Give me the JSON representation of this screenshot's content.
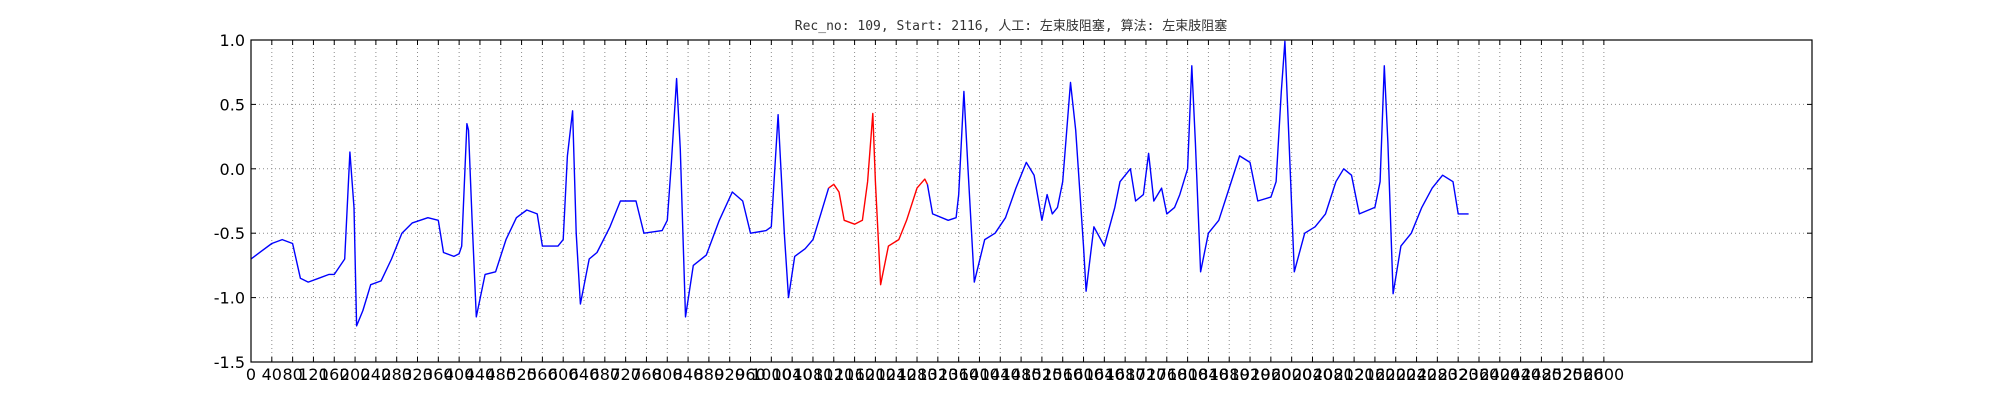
{
  "chart_data": {
    "type": "line",
    "title": "Rec_no: 109, Start: 2116, 人工: 左束肢阻塞, 算法: 左束肢阻塞",
    "xlabel": "",
    "ylabel": "",
    "xlim": [
      0,
      3000
    ],
    "ylim": [
      -1.5,
      1.0
    ],
    "grid": true,
    "yticks": [
      1.0,
      0.5,
      0.0,
      -0.5,
      -1.0,
      -1.5
    ],
    "ytick_labels": [
      "1.0",
      "0.5",
      "0.0",
      "-0.5",
      "-1.0",
      "-1.5"
    ],
    "xticks": [
      0,
      40,
      80,
      120,
      160,
      200,
      240,
      280,
      320,
      360,
      400,
      440,
      480,
      520,
      560,
      600,
      640,
      680,
      720,
      760,
      800,
      840,
      880,
      920,
      960,
      1000,
      1040,
      1080,
      1120,
      1160,
      1200,
      1240,
      1280,
      1320,
      1360,
      1400,
      1440,
      1480,
      1520,
      1560,
      1600,
      1640,
      1680,
      1720,
      1760,
      1800,
      1840,
      1880,
      1920,
      1960,
      2000,
      2040,
      2080,
      2120,
      2160,
      2200,
      2240,
      2280,
      2320,
      2360,
      2400,
      2440,
      2480,
      2520,
      2560,
      2600
    ],
    "xtick_labels": [
      "0",
      "40",
      "80",
      "120",
      "160",
      "200",
      "240",
      "280",
      "320",
      "360",
      "400",
      "440",
      "480",
      "520",
      "560",
      "600",
      "640",
      "680",
      "720",
      "760",
      "800",
      "840",
      "880",
      "920",
      "960",
      "1000",
      "1040",
      "1080",
      "1120",
      "1160",
      "1200",
      "1240",
      "1280",
      "1320",
      "1360",
      "1400",
      "1440",
      "1480",
      "1520",
      "1560",
      "1600",
      "1640",
      "1680",
      "1720",
      "1760",
      "1800",
      "1840",
      "1880",
      "1920",
      "1960",
      "2000",
      "2040",
      "2080",
      "2120",
      "2160",
      "2200",
      "2240",
      "2280",
      "2320",
      "2360",
      "2400",
      "2440",
      "2480",
      "2520",
      "2560",
      "2600"
    ],
    "series": [
      {
        "color": "#0000ff",
        "points": [
          [
            0,
            -0.7
          ],
          [
            20,
            -0.64
          ],
          [
            40,
            -0.58
          ],
          [
            60,
            -0.55
          ],
          [
            80,
            -0.58
          ],
          [
            95,
            -0.85
          ],
          [
            110,
            -0.88
          ],
          [
            130,
            -0.85
          ],
          [
            150,
            -0.82
          ],
          [
            160,
            -0.82
          ],
          [
            180,
            -0.7
          ],
          [
            190,
            0.13
          ],
          [
            198,
            -0.3
          ],
          [
            203,
            -1.22
          ],
          [
            215,
            -1.1
          ],
          [
            230,
            -0.9
          ],
          [
            250,
            -0.87
          ],
          [
            270,
            -0.7
          ],
          [
            290,
            -0.5
          ],
          [
            310,
            -0.42
          ],
          [
            340,
            -0.38
          ],
          [
            360,
            -0.4
          ],
          [
            370,
            -0.65
          ],
          [
            390,
            -0.68
          ],
          [
            400,
            -0.66
          ],
          [
            405,
            -0.6
          ],
          [
            415,
            0.35
          ],
          [
            418,
            0.3
          ],
          [
            425,
            -0.4
          ],
          [
            433,
            -1.15
          ],
          [
            450,
            -0.82
          ],
          [
            470,
            -0.8
          ],
          [
            490,
            -0.55
          ],
          [
            510,
            -0.38
          ],
          [
            530,
            -0.32
          ],
          [
            550,
            -0.35
          ],
          [
            560,
            -0.6
          ],
          [
            590,
            -0.6
          ],
          [
            600,
            -0.55
          ],
          [
            608,
            0.1
          ],
          [
            618,
            0.45
          ],
          [
            625,
            -0.5
          ],
          [
            633,
            -1.05
          ],
          [
            650,
            -0.7
          ],
          [
            665,
            -0.65
          ],
          [
            690,
            -0.45
          ],
          [
            710,
            -0.25
          ],
          [
            740,
            -0.25
          ],
          [
            755,
            -0.5
          ],
          [
            790,
            -0.48
          ],
          [
            800,
            -0.4
          ],
          [
            808,
            0.05
          ],
          [
            818,
            0.7
          ],
          [
            825,
            0.15
          ],
          [
            835,
            -1.15
          ],
          [
            850,
            -0.75
          ],
          [
            875,
            -0.67
          ],
          [
            900,
            -0.4
          ],
          [
            925,
            -0.18
          ],
          [
            945,
            -0.25
          ],
          [
            960,
            -0.5
          ],
          [
            990,
            -0.48
          ],
          [
            1000,
            -0.45
          ],
          [
            1013,
            0.42
          ],
          [
            1025,
            -0.5
          ],
          [
            1033,
            -1.0
          ],
          [
            1045,
            -0.68
          ],
          [
            1065,
            -0.62
          ],
          [
            1080,
            -0.55
          ],
          [
            1095,
            -0.35
          ],
          [
            1110,
            -0.15
          ]
        ]
      },
      {
        "color": "#ff0000",
        "points": [
          [
            1110,
            -0.15
          ],
          [
            1120,
            -0.12
          ],
          [
            1130,
            -0.18
          ],
          [
            1140,
            -0.4
          ],
          [
            1160,
            -0.43
          ],
          [
            1175,
            -0.4
          ],
          [
            1185,
            -0.1
          ],
          [
            1195,
            0.43
          ],
          [
            1200,
            -0.1
          ],
          [
            1210,
            -0.9
          ],
          [
            1225,
            -0.6
          ],
          [
            1245,
            -0.55
          ],
          [
            1260,
            -0.4
          ],
          [
            1280,
            -0.15
          ],
          [
            1295,
            -0.08
          ],
          [
            1300,
            -0.12
          ]
        ]
      },
      {
        "color": "#0000ff",
        "points": [
          [
            1300,
            -0.12
          ],
          [
            1310,
            -0.35
          ],
          [
            1340,
            -0.4
          ],
          [
            1355,
            -0.38
          ],
          [
            1360,
            -0.2
          ],
          [
            1370,
            0.6
          ],
          [
            1378,
            0.0
          ],
          [
            1390,
            -0.88
          ],
          [
            1410,
            -0.55
          ],
          [
            1430,
            -0.5
          ],
          [
            1450,
            -0.38
          ],
          [
            1470,
            -0.15
          ],
          [
            1490,
            0.05
          ],
          [
            1505,
            -0.05
          ],
          [
            1520,
            -0.4
          ],
          [
            1530,
            -0.2
          ],
          [
            1540,
            -0.35
          ],
          [
            1550,
            -0.3
          ],
          [
            1560,
            -0.1
          ],
          [
            1575,
            0.67
          ],
          [
            1585,
            0.3
          ],
          [
            1600,
            -0.6
          ],
          [
            1605,
            -0.95
          ],
          [
            1620,
            -0.45
          ],
          [
            1640,
            -0.6
          ],
          [
            1660,
            -0.3
          ],
          [
            1670,
            -0.1
          ],
          [
            1690,
            0.0
          ],
          [
            1700,
            -0.25
          ],
          [
            1715,
            -0.2
          ],
          [
            1725,
            0.12
          ],
          [
            1735,
            -0.25
          ],
          [
            1750,
            -0.15
          ],
          [
            1760,
            -0.35
          ],
          [
            1775,
            -0.3
          ],
          [
            1785,
            -0.2
          ],
          [
            1800,
            0.0
          ],
          [
            1808,
            0.8
          ],
          [
            1815,
            0.2
          ],
          [
            1825,
            -0.8
          ],
          [
            1840,
            -0.5
          ],
          [
            1860,
            -0.4
          ],
          [
            1880,
            -0.15
          ],
          [
            1900,
            0.1
          ],
          [
            1920,
            0.05
          ],
          [
            1935,
            -0.25
          ],
          [
            1960,
            -0.22
          ],
          [
            1970,
            -0.1
          ],
          [
            1980,
            0.6
          ],
          [
            1987,
            0.99
          ],
          [
            1995,
            0.2
          ],
          [
            2005,
            -0.8
          ],
          [
            2025,
            -0.5
          ],
          [
            2045,
            -0.45
          ],
          [
            2065,
            -0.35
          ],
          [
            2085,
            -0.1
          ],
          [
            2100,
            0.0
          ],
          [
            2115,
            -0.05
          ],
          [
            2130,
            -0.35
          ],
          [
            2160,
            -0.3
          ],
          [
            2170,
            -0.1
          ],
          [
            2178,
            0.8
          ],
          [
            2185,
            0.2
          ],
          [
            2195,
            -0.97
          ],
          [
            2210,
            -0.6
          ],
          [
            2230,
            -0.5
          ],
          [
            2250,
            -0.3
          ],
          [
            2270,
            -0.15
          ],
          [
            2290,
            -0.05
          ],
          [
            2310,
            -0.1
          ],
          [
            2320,
            -0.35
          ],
          [
            2340,
            -0.35
          ]
        ]
      }
    ]
  }
}
